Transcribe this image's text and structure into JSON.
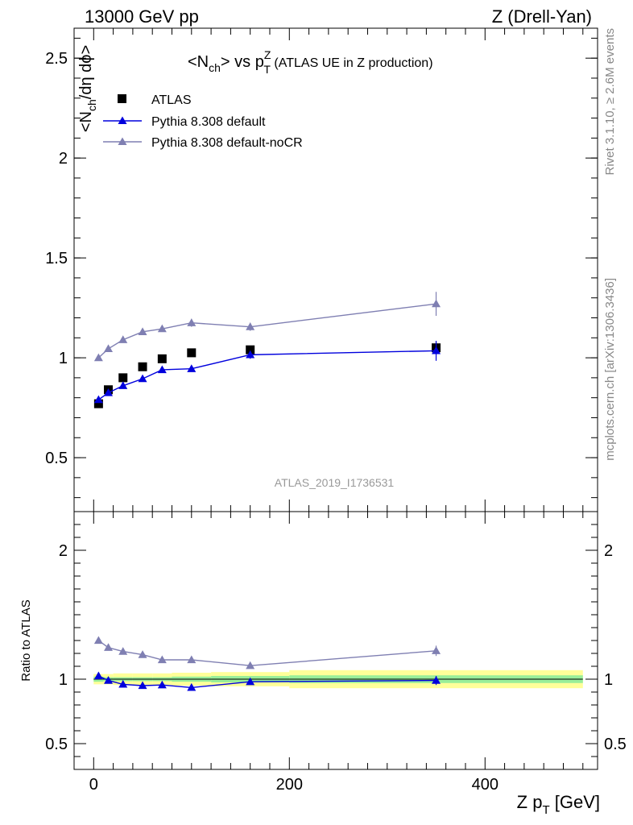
{
  "header": {
    "left": "13000 GeV pp",
    "right": "Z (Drell-Yan)"
  },
  "side_labels": {
    "rivet": "Rivet 3.1.10, ≥ 2.6M events",
    "mcplots": "mcplots.cern.ch [arXiv:1306.3436]"
  },
  "analysis_tag": "ATLAS_2019_I1736531",
  "chart_data": [
    {
      "type": "scatter",
      "title": {
        "main": "<N",
        "sub1": "ch",
        "mid": "> vs p",
        "sup": "Z",
        "sub2": "T",
        "tail": " (ATLAS UE in Z production)"
      },
      "ylabel": {
        "a": "<N",
        "b": "ch",
        "c": "/dη dϕ>"
      },
      "xlim": [
        -20,
        515
      ],
      "ylim": [
        0.23,
        2.65
      ],
      "yticks": [
        {
          "v": 0.5,
          "label": "0.5"
        },
        {
          "v": 1,
          "label": "1"
        },
        {
          "v": 1.5,
          "label": "1.5"
        },
        {
          "v": 2,
          "label": "2"
        },
        {
          "v": 2.5,
          "label": "2.5"
        }
      ],
      "legend_position": "top-left",
      "series": [
        {
          "name": "ATLAS",
          "marker": "square",
          "color": "#000000",
          "x": [
            5,
            15,
            30,
            50,
            70,
            100,
            160,
            350
          ],
          "y": [
            0.77,
            0.84,
            0.9,
            0.955,
            0.995,
            1.025,
            1.04,
            1.05
          ],
          "err": [
            0.01,
            0.01,
            0.01,
            0.01,
            0.01,
            0.01,
            0.01,
            0.03
          ]
        },
        {
          "name": "Pythia 8.308 default",
          "marker": "triangle",
          "color": "#0000dd",
          "x": [
            5,
            15,
            30,
            50,
            70,
            100,
            160,
            350
          ],
          "y": [
            0.79,
            0.825,
            0.86,
            0.895,
            0.94,
            0.945,
            1.015,
            1.035
          ],
          "err": [
            0.005,
            0.005,
            0.005,
            0.005,
            0.008,
            0.01,
            0.02,
            0.05
          ]
        },
        {
          "name": "Pythia 8.308 default-noCR",
          "marker": "triangle",
          "color": "#7f7fb2",
          "x": [
            5,
            15,
            30,
            50,
            70,
            100,
            160,
            350
          ],
          "y": [
            1.0,
            1.045,
            1.09,
            1.13,
            1.145,
            1.175,
            1.155,
            1.27
          ],
          "err": [
            0.005,
            0.005,
            0.008,
            0.01,
            0.01,
            0.02,
            0.02,
            0.06
          ]
        }
      ]
    },
    {
      "type": "scatter",
      "ylabel": "Ratio to ATLAS",
      "xlabel": {
        "a": "Z p",
        "b": "T",
        "c": " [GeV]"
      },
      "xlim": [
        -20,
        515
      ],
      "ylim": [
        0.3,
        2.3
      ],
      "xticks": [
        {
          "v": 0,
          "label": "0"
        },
        {
          "v": 200,
          "label": "200"
        },
        {
          "v": 400,
          "label": "400"
        }
      ],
      "yticks": [
        {
          "v": 0.5,
          "label": "0.5"
        },
        {
          "v": 1,
          "label": "1"
        },
        {
          "v": 2,
          "label": "2"
        }
      ],
      "reference": 1,
      "bands": [
        {
          "x0": 0,
          "x1": 10,
          "stat": [
            0.98,
            1.02
          ],
          "total": [
            0.96,
            1.04
          ]
        },
        {
          "x0": 10,
          "x1": 20,
          "stat": [
            0.985,
            1.015
          ],
          "total": [
            0.96,
            1.04
          ]
        },
        {
          "x0": 20,
          "x1": 40,
          "stat": [
            0.985,
            1.015
          ],
          "total": [
            0.955,
            1.045
          ]
        },
        {
          "x0": 40,
          "x1": 60,
          "stat": [
            0.985,
            1.015
          ],
          "total": [
            0.955,
            1.045
          ]
        },
        {
          "x0": 60,
          "x1": 80,
          "stat": [
            0.985,
            1.015
          ],
          "total": [
            0.955,
            1.045
          ]
        },
        {
          "x0": 80,
          "x1": 120,
          "stat": [
            0.98,
            1.02
          ],
          "total": [
            0.95,
            1.05
          ]
        },
        {
          "x0": 120,
          "x1": 200,
          "stat": [
            0.975,
            1.025
          ],
          "total": [
            0.945,
            1.055
          ]
        },
        {
          "x0": 200,
          "x1": 500,
          "stat": [
            0.97,
            1.03
          ],
          "total": [
            0.93,
            1.07
          ]
        }
      ],
      "series": [
        {
          "name": "Pythia 8.308 default",
          "marker": "triangle",
          "color": "#0000dd",
          "x": [
            5,
            15,
            30,
            50,
            70,
            100,
            160,
            350
          ],
          "y": [
            1.025,
            0.99,
            0.96,
            0.95,
            0.955,
            0.935,
            0.98,
            0.99
          ],
          "err": [
            0.005,
            0.005,
            0.005,
            0.005,
            0.008,
            0.01,
            0.015,
            0.035
          ]
        },
        {
          "name": "Pythia 8.308 default-noCR",
          "marker": "triangle",
          "color": "#7f7fb2",
          "x": [
            5,
            15,
            30,
            50,
            70,
            100,
            160,
            350
          ],
          "y": [
            1.3,
            1.245,
            1.215,
            1.19,
            1.15,
            1.15,
            1.105,
            1.22
          ],
          "err": [
            0.005,
            0.005,
            0.008,
            0.01,
            0.01,
            0.015,
            0.015,
            0.04
          ]
        }
      ]
    }
  ]
}
